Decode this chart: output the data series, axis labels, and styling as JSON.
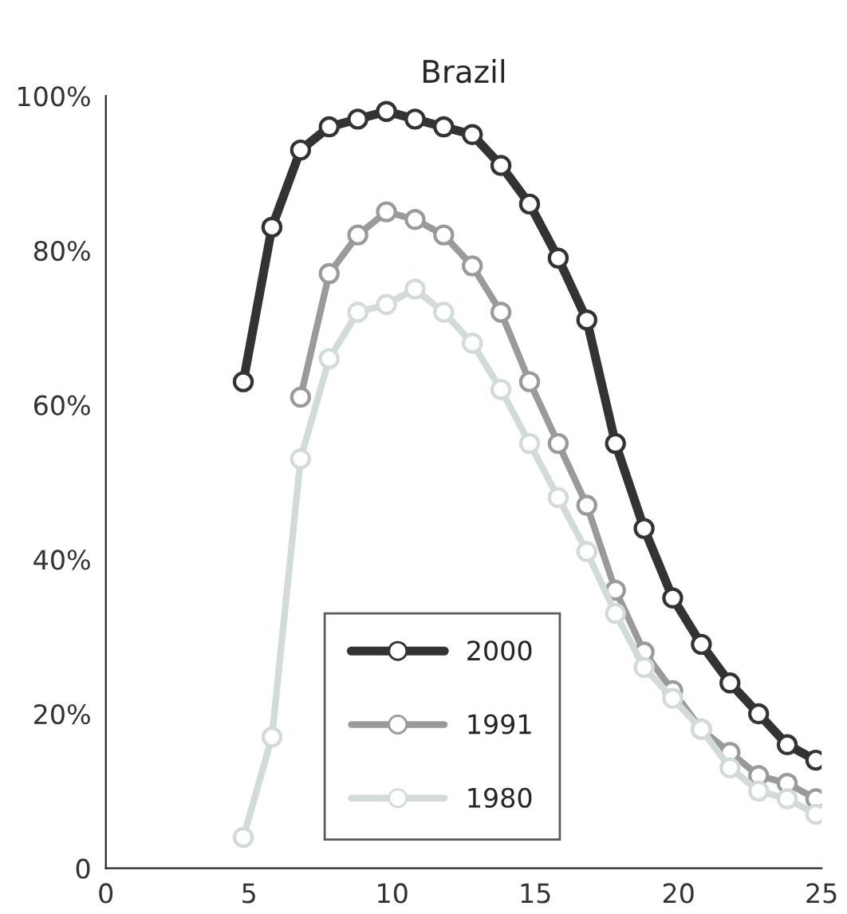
{
  "chart_data": {
    "type": "line",
    "title": "Brazil",
    "x": [
      4.8,
      5.8,
      6.8,
      7.8,
      8.8,
      9.8,
      10.8,
      11.8,
      12.8,
      13.8,
      14.8,
      15.8,
      16.8,
      17.8,
      18.8,
      19.8,
      20.8,
      21.8,
      22.8,
      23.8,
      24.8
    ],
    "series": [
      {
        "name": "2000",
        "color": "#333333",
        "values": [
          63,
          83,
          93,
          96,
          97,
          98,
          97,
          96,
          95,
          91,
          86,
          79,
          71,
          55,
          44,
          35,
          29,
          24,
          20,
          16,
          14
        ]
      },
      {
        "name": "1991",
        "color": "#9a9a9a",
        "values": [
          null,
          null,
          61,
          77,
          82,
          85,
          84,
          82,
          78,
          72,
          63,
          55,
          47,
          36,
          28,
          23,
          18,
          15,
          12,
          11,
          9
        ]
      },
      {
        "name": "1980",
        "color": "#d2dbd8",
        "values": [
          4,
          17,
          53,
          66,
          72,
          73,
          75,
          72,
          68,
          62,
          55,
          48,
          41,
          33,
          26,
          22,
          18,
          13,
          10,
          9,
          7
        ]
      }
    ],
    "xlim": [
      0,
      25
    ],
    "xticks": [
      0,
      5,
      10,
      15,
      20,
      25
    ],
    "ylim": [
      0,
      100
    ],
    "yticks": [
      {
        "value": 0,
        "label": "0"
      },
      {
        "value": 20,
        "label": "20%"
      },
      {
        "value": 40,
        "label": "40%"
      },
      {
        "value": 60,
        "label": "60%"
      },
      {
        "value": 80,
        "label": "80%"
      },
      {
        "value": 100,
        "label": "100%"
      }
    ],
    "marker": "circle",
    "line_style": "solid",
    "grid": false,
    "legend": "bottom"
  }
}
